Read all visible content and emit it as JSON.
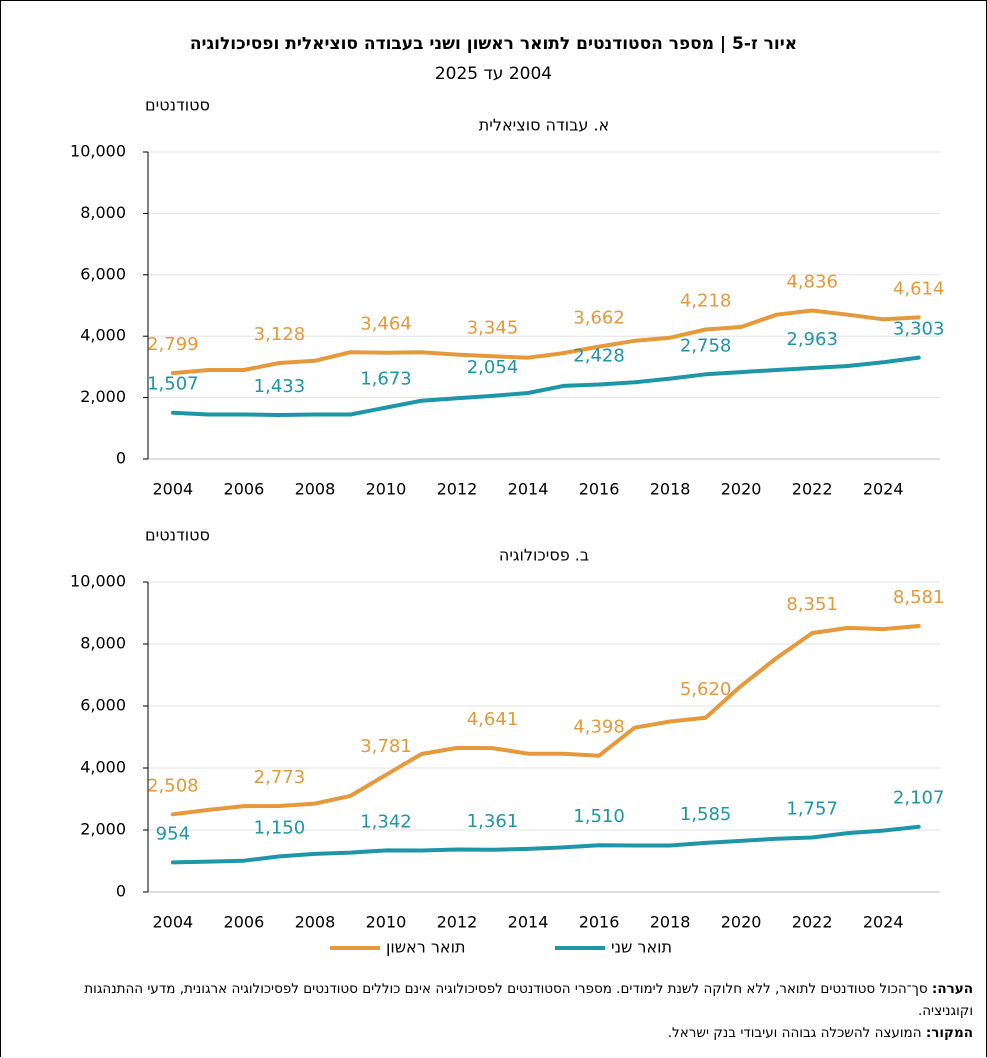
{
  "title": "איור ז-5 | מספר הסטודנטים לתואר ראשון ושני בעבודה סוציאלית ופסיכולוגיה",
  "subtitle": "2004 עד 2025",
  "note_label": "הערה:",
  "note": "סך־הכול סטודנטים לתואר, ללא חלוקה לשנת לימודים. מספרי הסטודנטים לפסיכולוגיה אינם כוללים סטודנטים לפסיכולוגיה ארגונית, מדעי ההתנהגות וקוגניציה.",
  "source_label": "המקור:",
  "source": "המועצה להשכלה גבוהה ועיבודי בנק ישראל.",
  "chart_data": [
    {
      "type": "line",
      "title": "א. עבודה סוציאלית",
      "ylabel": "סטודנטים",
      "x": [
        2004,
        2005,
        2006,
        2007,
        2008,
        2009,
        2010,
        2011,
        2012,
        2013,
        2014,
        2015,
        2016,
        2017,
        2018,
        2019,
        2020,
        2021,
        2022,
        2023,
        2024,
        2025
      ],
      "xlim": [
        2003.3,
        2025.6
      ],
      "xticks": [
        2004,
        2006,
        2008,
        2010,
        2012,
        2014,
        2016,
        2018,
        2020,
        2022,
        2024
      ],
      "ylim": [
        0,
        10000
      ],
      "yticks": [
        0,
        {
          "value": 2000,
          "label": "2,000"
        },
        {
          "value": 4000,
          "label": "4,000"
        },
        {
          "value": 6000,
          "label": "6,000"
        },
        {
          "value": 8000,
          "label": "8,000"
        },
        {
          "value": 10000,
          "label": "10,000"
        }
      ],
      "grid": true,
      "series": [
        {
          "color": "#e6993a",
          "values": [
            2799,
            2900,
            2900,
            3128,
            3200,
            3480,
            3464,
            3480,
            3400,
            3345,
            3300,
            3450,
            3662,
            3850,
            3950,
            4218,
            4300,
            4700,
            4836,
            4700,
            4550,
            4614
          ],
          "value_labels": [
            "2,799",
            null,
            null,
            "3,128",
            null,
            null,
            "3,464",
            null,
            null,
            "3,345",
            null,
            null,
            "3,662",
            null,
            null,
            "4,218",
            null,
            null,
            "4,836",
            null,
            null,
            "4,614"
          ]
        },
        {
          "color": "#1f95a8",
          "values": [
            1507,
            1450,
            1450,
            1433,
            1450,
            1450,
            1673,
            1900,
            1980,
            2054,
            2150,
            2380,
            2428,
            2500,
            2620,
            2758,
            2830,
            2900,
            2963,
            3030,
            3150,
            3303
          ],
          "value_labels": [
            "1,507",
            null,
            null,
            "1,433",
            null,
            null,
            "1,673",
            null,
            null,
            "2,054",
            null,
            null,
            "2,428",
            null,
            null,
            "2,758",
            null,
            null,
            "2,963",
            null,
            null,
            "3,303"
          ]
        }
      ]
    },
    {
      "type": "line",
      "title": "ב. פסיכולוגיה",
      "ylabel": "סטודנטים",
      "x": [
        2004,
        2005,
        2006,
        2007,
        2008,
        2009,
        2010,
        2011,
        2012,
        2013,
        2014,
        2015,
        2016,
        2017,
        2018,
        2019,
        2020,
        2021,
        2022,
        2023,
        2024,
        2025
      ],
      "xlim": [
        2003.3,
        2025.6
      ],
      "xticks": [
        2004,
        2006,
        2008,
        2010,
        2012,
        2014,
        2016,
        2018,
        2020,
        2022,
        2024
      ],
      "ylim": [
        0,
        10000
      ],
      "yticks": [
        0,
        {
          "value": 2000,
          "label": "2,000"
        },
        {
          "value": 4000,
          "label": "4,000"
        },
        {
          "value": 6000,
          "label": "6,000"
        },
        {
          "value": 8000,
          "label": "8,000"
        },
        {
          "value": 10000,
          "label": "10,000"
        }
      ],
      "grid": true,
      "legend": "bottom",
      "series": [
        {
          "name": "תואר ראשון",
          "color": "#e6993a",
          "values": [
            2508,
            2650,
            2770,
            2773,
            2850,
            3100,
            3781,
            4450,
            4650,
            4641,
            4460,
            4460,
            4398,
            5300,
            5500,
            5620,
            6650,
            7550,
            8351,
            8520,
            8480,
            8581
          ],
          "value_labels": [
            "2,508",
            null,
            null,
            "2,773",
            null,
            null,
            "3,781",
            null,
            null,
            "4,641",
            null,
            null,
            "4,398",
            null,
            null,
            "5,620",
            null,
            null,
            "8,351",
            null,
            null,
            "8,581"
          ]
        },
        {
          "name": "תואר שני",
          "color": "#1f95a8",
          "values": [
            954,
            980,
            1010,
            1150,
            1230,
            1270,
            1342,
            1340,
            1370,
            1361,
            1390,
            1440,
            1510,
            1500,
            1500,
            1585,
            1650,
            1720,
            1757,
            1900,
            1980,
            2107
          ],
          "value_labels": [
            "954",
            null,
            null,
            "1,150",
            null,
            null,
            "1,342",
            null,
            null,
            "1,361",
            null,
            null,
            "1,510",
            null,
            null,
            "1,585",
            null,
            null,
            "1,757",
            null,
            null,
            "2,107"
          ]
        }
      ]
    }
  ]
}
